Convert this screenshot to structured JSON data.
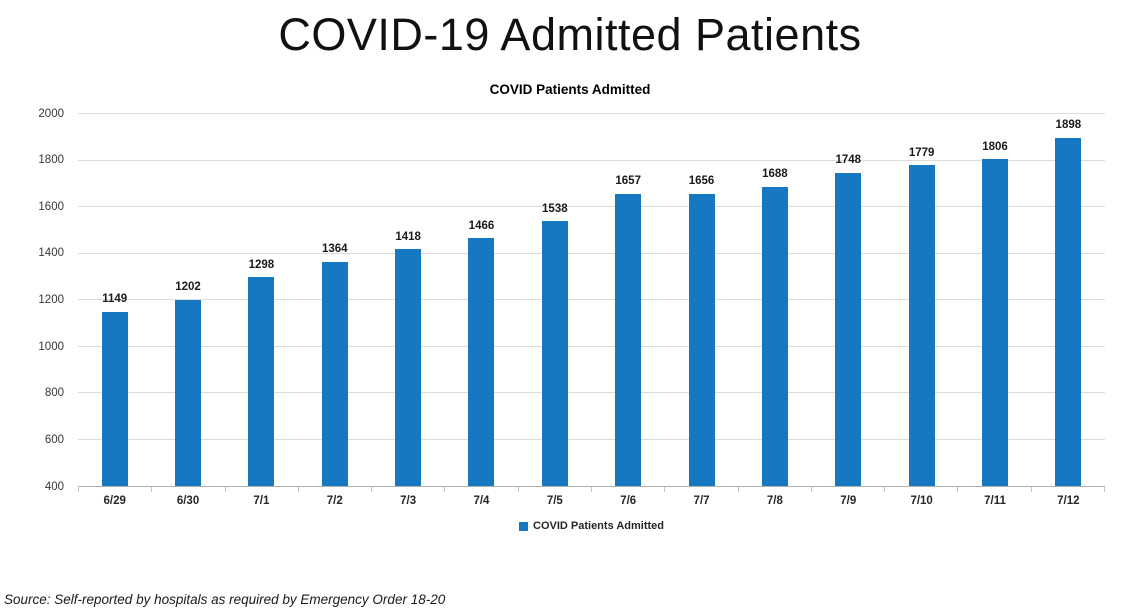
{
  "page_title": "COVID-19 Admitted Patients",
  "source_note": "Source: Self-reported by hospitals as required by Emergency Order 18-20",
  "legend": {
    "label": "COVID Patients Admitted"
  },
  "chart_data": {
    "type": "bar",
    "title": "COVID Patients Admitted",
    "categories": [
      "6/29",
      "6/30",
      "7/1",
      "7/2",
      "7/3",
      "7/4",
      "7/5",
      "7/6",
      "7/7",
      "7/8",
      "7/9",
      "7/10",
      "7/11",
      "7/12"
    ],
    "values": [
      1149,
      1202,
      1298,
      1364,
      1418,
      1466,
      1538,
      1657,
      1656,
      1688,
      1748,
      1779,
      1806,
      1898
    ],
    "series_name": "COVID Patients Admitted",
    "xlabel": "",
    "ylabel": "",
    "ylim": [
      400,
      2000
    ],
    "ytick_step": 200,
    "ytick_labels": [
      "400",
      "600",
      "800",
      "1000",
      "1200",
      "1400",
      "1600",
      "1800",
      "2000"
    ],
    "bar_color": "#1778c2",
    "grid": true,
    "gridline_color": "#dcdcdc",
    "legend_position": "bottom",
    "value_labels_shown": true
  }
}
